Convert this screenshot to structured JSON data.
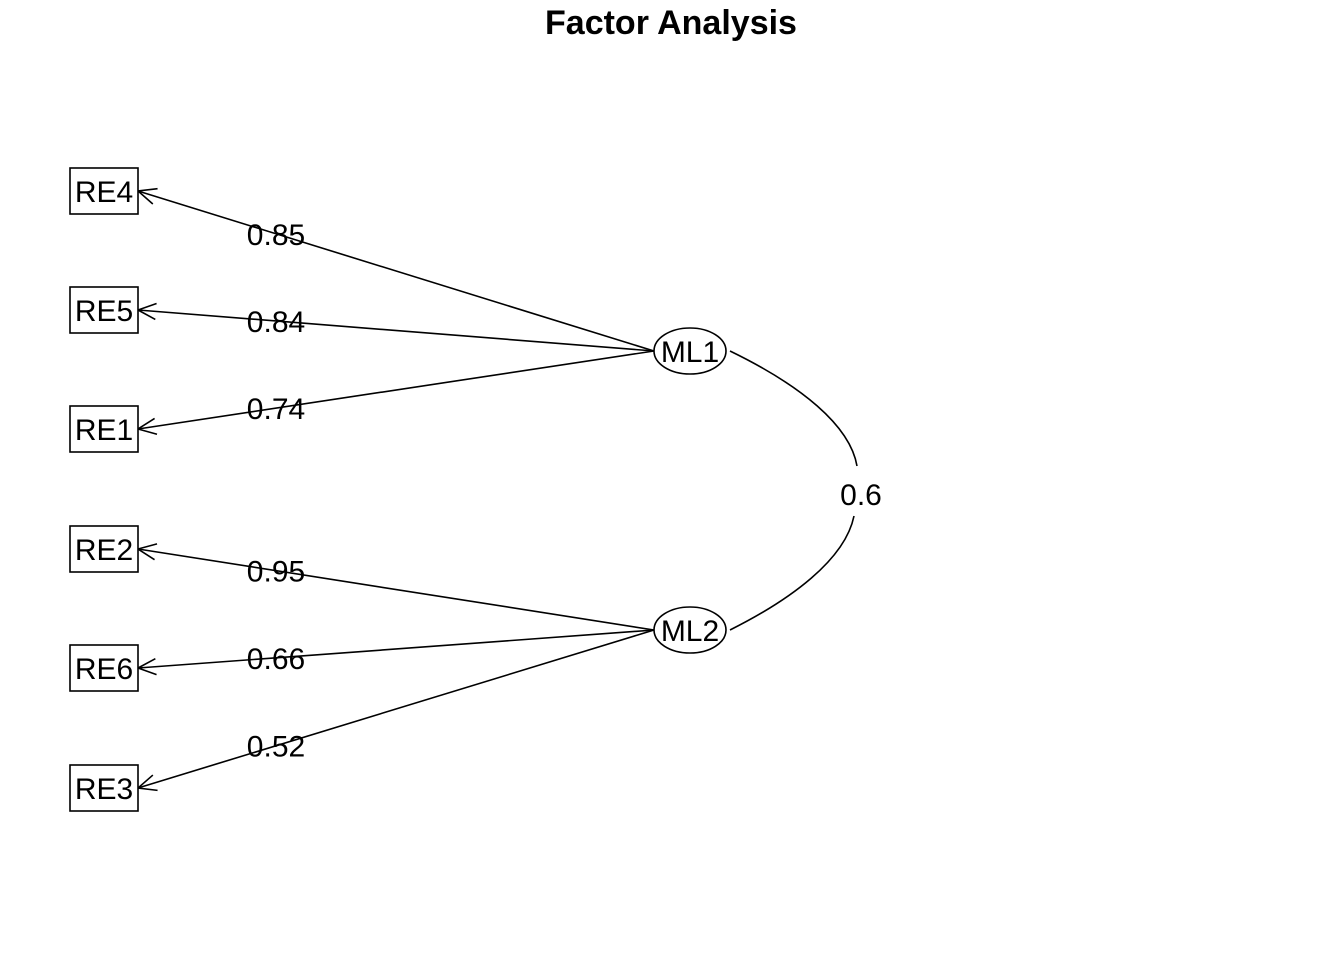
{
  "title": "Factor Analysis",
  "factors": [
    {
      "id": "ML1",
      "label": "ML1"
    },
    {
      "id": "ML2",
      "label": "ML2"
    }
  ],
  "indicators": [
    {
      "id": "RE4",
      "label": "RE4"
    },
    {
      "id": "RE5",
      "label": "RE5"
    },
    {
      "id": "RE1",
      "label": "RE1"
    },
    {
      "id": "RE2",
      "label": "RE2"
    },
    {
      "id": "RE6",
      "label": "RE6"
    },
    {
      "id": "RE3",
      "label": "RE3"
    }
  ],
  "loadings": [
    {
      "factor": "ML1",
      "indicator": "RE4",
      "value": "0.85"
    },
    {
      "factor": "ML1",
      "indicator": "RE5",
      "value": "0.84"
    },
    {
      "factor": "ML1",
      "indicator": "RE1",
      "value": "0.74"
    },
    {
      "factor": "ML2",
      "indicator": "RE2",
      "value": "0.95"
    },
    {
      "factor": "ML2",
      "indicator": "RE6",
      "value": "0.66"
    },
    {
      "factor": "ML2",
      "indicator": "RE3",
      "value": "0.52"
    }
  ],
  "correlation": {
    "from": "ML1",
    "to": "ML2",
    "value": "0.6"
  }
}
